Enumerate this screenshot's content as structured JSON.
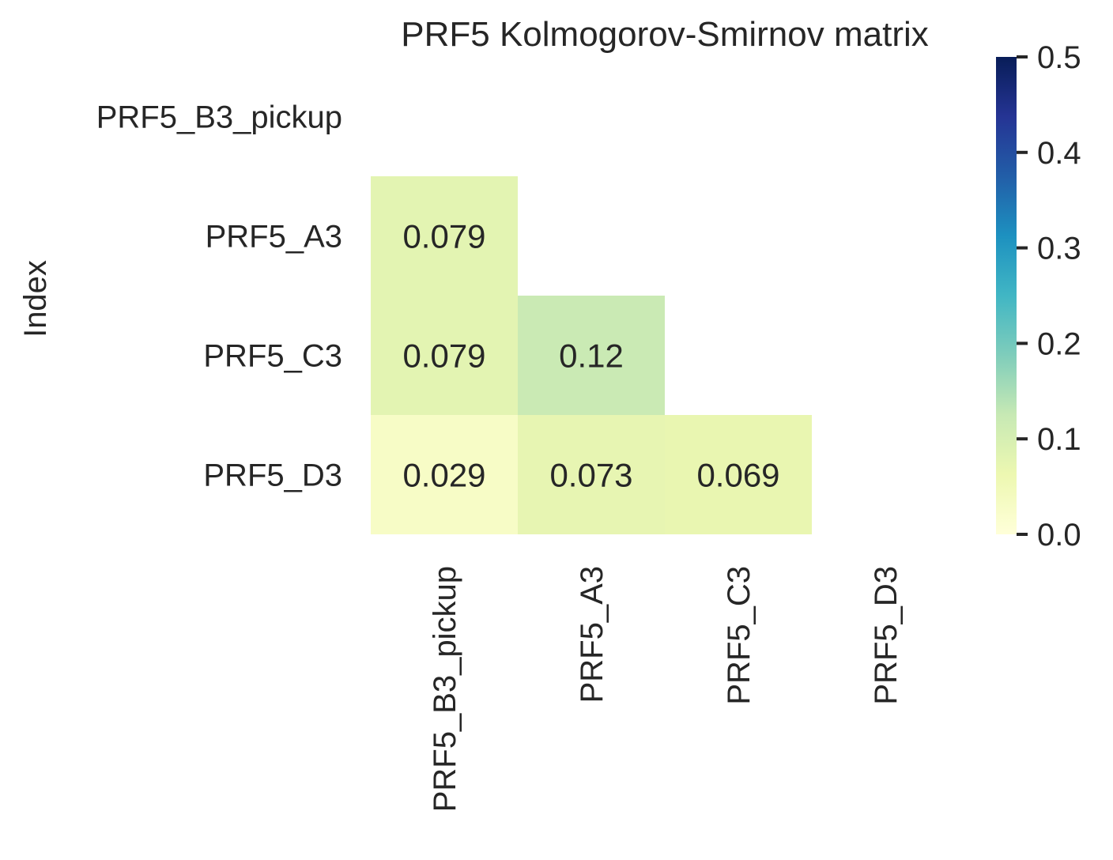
{
  "chart_data": {
    "type": "heatmap",
    "title": "PRF5 Kolmogorov-Smirnov matrix",
    "ylabel": "Index",
    "xlabel": "",
    "rows": [
      "PRF5_B3_pickup",
      "PRF5_A3",
      "PRF5_C3",
      "PRF5_D3"
    ],
    "columns": [
      "PRF5_B3_pickup",
      "PRF5_A3",
      "PRF5_C3",
      "PRF5_D3"
    ],
    "mask": "upper-triangle-including-diagonal",
    "cells": [
      {
        "row": 1,
        "col": 0,
        "value": 0.079,
        "label": "0.079"
      },
      {
        "row": 2,
        "col": 0,
        "value": 0.079,
        "label": "0.079"
      },
      {
        "row": 2,
        "col": 1,
        "value": 0.12,
        "label": "0.12"
      },
      {
        "row": 3,
        "col": 0,
        "value": 0.029,
        "label": "0.029"
      },
      {
        "row": 3,
        "col": 1,
        "value": 0.073,
        "label": "0.073"
      },
      {
        "row": 3,
        "col": 2,
        "value": 0.069,
        "label": "0.069"
      }
    ],
    "colorbar": {
      "colormap": "YlGnBu",
      "range": [
        0.0,
        0.5
      ],
      "ticks": [
        "0.0",
        "0.1",
        "0.2",
        "0.3",
        "0.4",
        "0.5"
      ]
    },
    "colors": {
      "colormap_stops": [
        "#ffffd9",
        "#edf8b1",
        "#c7e9b4",
        "#7fcdbb",
        "#41b6c4",
        "#1d91c0",
        "#225ea8",
        "#253494",
        "#081d58"
      ],
      "text": "#262626"
    }
  }
}
